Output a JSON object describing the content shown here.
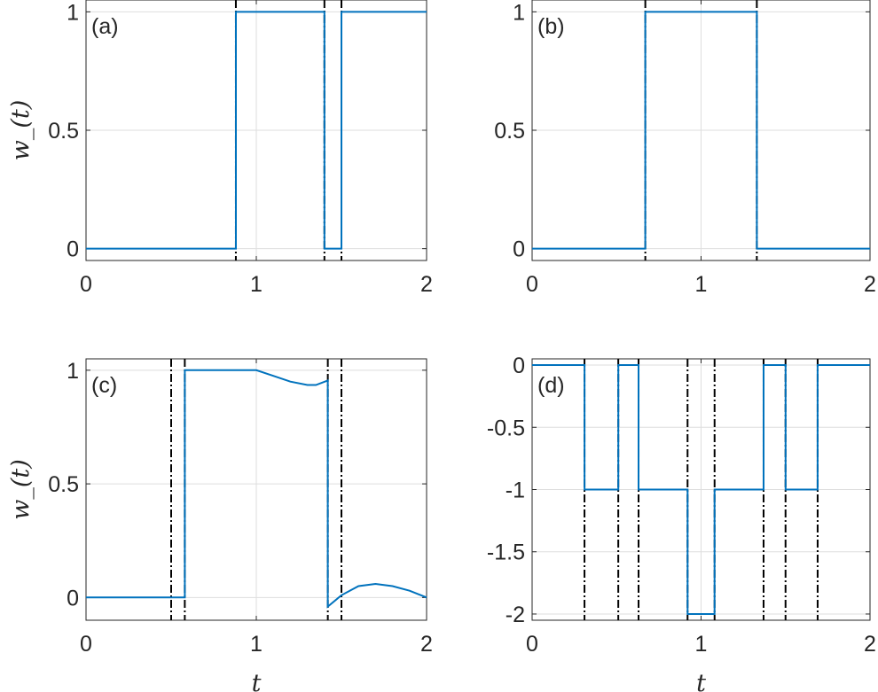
{
  "chart_data": [
    {
      "panel": "a",
      "label": "(a)",
      "type": "line",
      "xlim": [
        0,
        2
      ],
      "ylim": [
        -0.05,
        1.05
      ],
      "xticks": [
        "0",
        "1",
        "2"
      ],
      "yticks": [
        "0",
        "0.5",
        "1"
      ],
      "ylabel": "w_(t)",
      "xlabel": "",
      "grid": true,
      "series": [
        {
          "x": [
            0,
            0.88,
            0.88,
            1.4,
            1.4,
            1.5,
            1.5,
            2
          ],
          "y": [
            0,
            0,
            1,
            1,
            0,
            0,
            1,
            1
          ]
        }
      ],
      "vlines": [
        0.88,
        1.4,
        1.5
      ]
    },
    {
      "panel": "b",
      "label": "(b)",
      "type": "line",
      "xlim": [
        0,
        2
      ],
      "ylim": [
        -0.05,
        1.05
      ],
      "xticks": [
        "0",
        "1",
        "2"
      ],
      "yticks": [
        "0",
        "0.5",
        "1"
      ],
      "ylabel": "",
      "xlabel": "",
      "grid": true,
      "series": [
        {
          "x": [
            0,
            0.67,
            0.67,
            1.33,
            1.33,
            2
          ],
          "y": [
            0,
            0,
            1,
            1,
            0,
            0
          ]
        }
      ],
      "vlines": [
        0.67,
        1.33
      ]
    },
    {
      "panel": "c",
      "label": "(c)",
      "type": "line",
      "xlim": [
        0,
        2
      ],
      "ylim": [
        -0.1,
        1.05
      ],
      "xticks": [
        "0",
        "1",
        "2"
      ],
      "yticks": [
        "0",
        "0.5",
        "1"
      ],
      "ylabel": "w_(t)",
      "xlabel": "t",
      "grid": true,
      "series": [
        {
          "x": [
            0,
            0.58,
            0.58,
            1.0,
            1.1,
            1.2,
            1.3,
            1.35,
            1.42,
            1.42,
            1.5,
            1.6,
            1.7,
            1.8,
            1.9,
            2.0
          ],
          "y": [
            0,
            0,
            1,
            1,
            0.975,
            0.95,
            0.935,
            0.935,
            0.955,
            -0.04,
            0.01,
            0.05,
            0.06,
            0.05,
            0.03,
            0.0
          ]
        }
      ],
      "vlines": [
        0.5,
        0.58,
        1.42,
        1.5
      ]
    },
    {
      "panel": "d",
      "label": "(d)",
      "type": "line",
      "xlim": [
        0,
        2
      ],
      "ylim": [
        -2.05,
        0.05
      ],
      "xticks": [
        "0",
        "1",
        "2"
      ],
      "yticks": [
        "0",
        "-0.5",
        "-1",
        "-1.5",
        "-2"
      ],
      "ylabel": "",
      "xlabel": "t",
      "grid": true,
      "series": [
        {
          "x": [
            0,
            0.31,
            0.31,
            0.51,
            0.51,
            0.63,
            0.63,
            0.92,
            0.92,
            1.08,
            1.08,
            1.37,
            1.37,
            1.5,
            1.5,
            1.69,
            1.69,
            2.0
          ],
          "y": [
            0,
            0,
            -1,
            -1,
            0,
            0,
            -1,
            -1,
            -2,
            -2,
            -1,
            -1,
            0,
            0,
            -1,
            -1,
            0,
            0
          ]
        }
      ],
      "vlines": [
        0.31,
        0.51,
        0.63,
        0.92,
        1.08,
        1.37,
        1.5,
        1.69
      ]
    }
  ]
}
